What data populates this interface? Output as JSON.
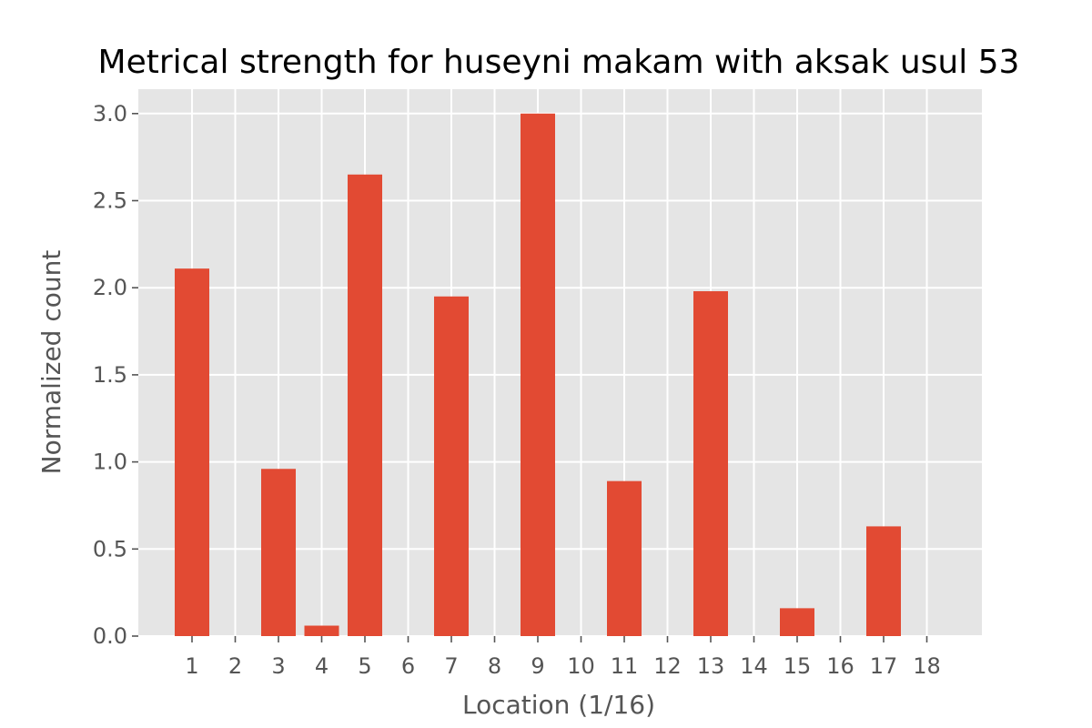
{
  "chart_data": {
    "type": "bar",
    "title": "Metrical strength for huseyni makam with aksak usul 53",
    "xlabel": "Location (1/16)",
    "ylabel": "Normalized count",
    "categories": [
      "1",
      "2",
      "3",
      "4",
      "5",
      "6",
      "7",
      "8",
      "9",
      "10",
      "11",
      "12",
      "13",
      "14",
      "15",
      "16",
      "17",
      "18"
    ],
    "values": [
      2.11,
      0,
      0.96,
      0.06,
      2.65,
      0,
      1.95,
      0,
      3.0,
      0,
      0.89,
      0,
      1.98,
      0,
      0.16,
      0,
      0.63,
      0
    ],
    "ylim": [
      0,
      3.14
    ],
    "yticks": [
      "0.0",
      "0.5",
      "1.0",
      "1.5",
      "2.0",
      "2.5",
      "3.0"
    ],
    "grid": true,
    "colors": {
      "bar": "#E24A33",
      "plot_background": "#E5E5E5",
      "grid": "#FFFFFF",
      "tick_text": "#555555",
      "title_text": "#000000"
    }
  }
}
